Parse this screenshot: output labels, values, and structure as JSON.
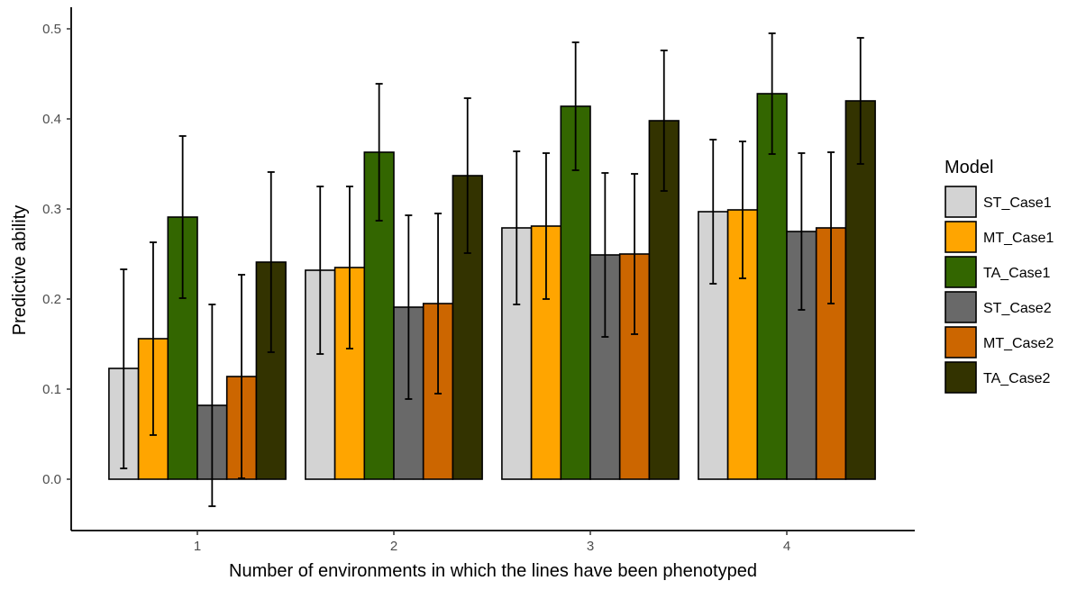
{
  "chart_data": {
    "type": "bar",
    "xlabel": "Number of environments in which the lines have been phenotyped",
    "ylabel": "Predictive ability",
    "categories": [
      "1",
      "2",
      "3",
      "4"
    ],
    "ylim": [
      -0.05,
      0.51
    ],
    "yticks": [
      "0.0",
      "0.1",
      "0.2",
      "0.3",
      "0.4",
      "0.5"
    ],
    "grid": false,
    "error_bars": true,
    "legend": {
      "title": "Model",
      "placement": "right"
    },
    "series": [
      {
        "name": "ST_Case1",
        "color": "#D3D3D3",
        "values": [
          0.123,
          0.232,
          0.279,
          0.297
        ],
        "lower": [
          0.012,
          0.139,
          0.194,
          0.217
        ],
        "upper": [
          0.233,
          0.325,
          0.364,
          0.377
        ]
      },
      {
        "name": "MT_Case1",
        "color": "#FFA500",
        "values": [
          0.156,
          0.235,
          0.281,
          0.299
        ],
        "lower": [
          0.049,
          0.145,
          0.2,
          0.223
        ],
        "upper": [
          0.263,
          0.325,
          0.362,
          0.375
        ]
      },
      {
        "name": "TA_Case1",
        "color": "#336600",
        "values": [
          0.291,
          0.363,
          0.414,
          0.428
        ],
        "lower": [
          0.201,
          0.287,
          0.343,
          0.361
        ],
        "upper": [
          0.381,
          0.439,
          0.485,
          0.495
        ]
      },
      {
        "name": "ST_Case2",
        "color": "#696969",
        "values": [
          0.082,
          0.191,
          0.249,
          0.275
        ],
        "lower": [
          -0.03,
          0.089,
          0.158,
          0.188
        ],
        "upper": [
          0.194,
          0.293,
          0.34,
          0.362
        ]
      },
      {
        "name": "MT_Case2",
        "color": "#CC6600",
        "values": [
          0.114,
          0.195,
          0.25,
          0.279
        ],
        "lower": [
          0.001,
          0.095,
          0.161,
          0.195
        ],
        "upper": [
          0.227,
          0.295,
          0.339,
          0.363
        ]
      },
      {
        "name": "TA_Case2",
        "color": "#333300",
        "values": [
          0.241,
          0.337,
          0.398,
          0.42
        ],
        "lower": [
          0.141,
          0.251,
          0.32,
          0.35
        ],
        "upper": [
          0.341,
          0.423,
          0.476,
          0.49
        ]
      }
    ]
  }
}
